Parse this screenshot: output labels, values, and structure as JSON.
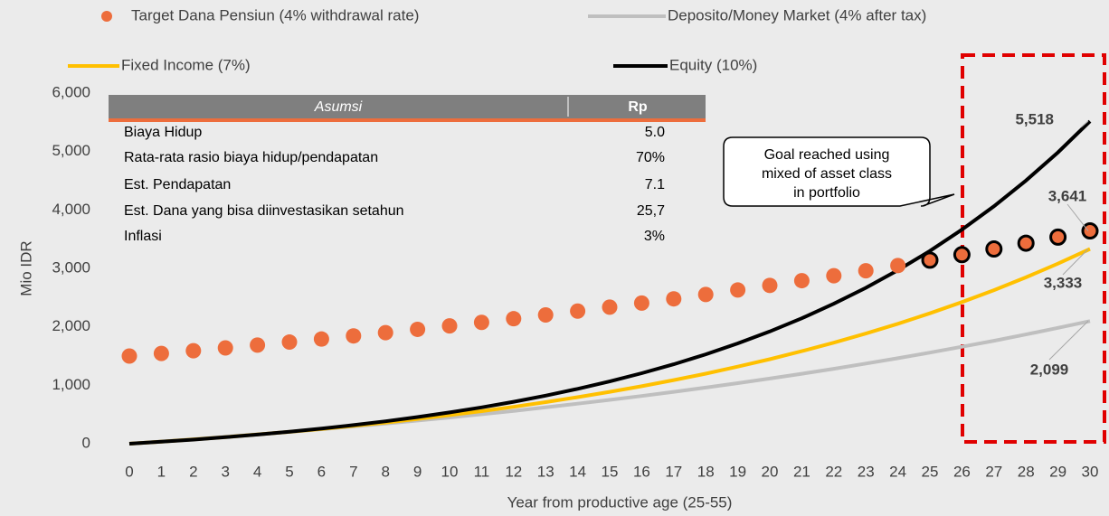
{
  "chart_data": {
    "type": "line",
    "x_label": "Year from productive age (25-55)",
    "y_label": "Mio IDR",
    "x": [
      0,
      1,
      2,
      3,
      4,
      5,
      6,
      7,
      8,
      9,
      10,
      11,
      12,
      13,
      14,
      15,
      16,
      17,
      18,
      19,
      20,
      21,
      22,
      23,
      24,
      25,
      26,
      27,
      28,
      29,
      30
    ],
    "xlim": [
      -0.5,
      30.5
    ],
    "ylim": [
      0,
      6000
    ],
    "yticks": [
      0,
      {
        "value": 1000,
        "label": "1,000"
      },
      {
        "value": 2000,
        "label": "2,000"
      },
      {
        "value": 3000,
        "label": "3,000"
      },
      {
        "value": 4000,
        "label": "4,000"
      },
      {
        "value": 5000,
        "label": "5,000"
      },
      {
        "value": 6000,
        "label": "6,000"
      }
    ],
    "series": [
      {
        "name": "Target Dana Pensiun (4% withdrawal rate)",
        "color": "#ed6d3c",
        "kind": "scatter",
        "outline_from": 25,
        "end_label": "3,641",
        "values": [
          1500,
          1545,
          1591,
          1639,
          1688,
          1739,
          1791,
          1845,
          1900,
          1957,
          2016,
          2076,
          2139,
          2203,
          2269,
          2337,
          2407,
          2479,
          2554,
          2630,
          2709,
          2790,
          2874,
          2960,
          3049,
          3141,
          3235,
          3332,
          3432,
          3535,
          3641
        ]
      },
      {
        "name": "Deposito/Money Market (4% after tax)",
        "color": "#bfbfbf",
        "kind": "line",
        "end_label": "2,099",
        "values": [
          0,
          37,
          76,
          117,
          159,
          203,
          248,
          296,
          345,
          396,
          449,
          504,
          562,
          622,
          685,
          750,
          817,
          887,
          960,
          1036,
          1115,
          1197,
          1282,
          1371,
          1463,
          1559,
          1659,
          1762,
          1870,
          1983,
          2099
        ]
      },
      {
        "name": "Fixed Income (7%)",
        "color": "#ffc000",
        "kind": "line",
        "end_label": "3,333",
        "values": [
          0,
          35,
          73,
          113,
          157,
          203,
          252,
          305,
          362,
          423,
          488,
          557,
          631,
          711,
          796,
          887,
          984,
          1088,
          1199,
          1319,
          1446,
          1583,
          1729,
          1885,
          2052,
          2231,
          2423,
          2628,
          2847,
          3082,
          3333
        ]
      },
      {
        "name": "Equity (10%)",
        "color": "#000000",
        "kind": "line",
        "end_label": "5,518",
        "values": [
          0,
          34,
          70,
          111,
          156,
          205,
          259,
          318,
          384,
          456,
          535,
          622,
          718,
          823,
          939,
          1066,
          1206,
          1360,
          1530,
          1716,
          1921,
          2147,
          2396,
          2668,
          2969,
          3299,
          3663,
          4063,
          4503,
          4986,
          5518
        ]
      }
    ],
    "annotation": [
      "Goal reached using",
      "mixed of asset class",
      "in portfolio"
    ]
  },
  "table": {
    "header": [
      "Asumsi",
      "Rp"
    ],
    "rows": [
      [
        "Biaya Hidup",
        "5.0"
      ],
      [
        "Rata-rata rasio biaya hidup/pendapatan",
        "70%"
      ],
      [
        "Est. Pendapatan",
        "7.1"
      ],
      [
        "Est. Dana yang bisa diinvestasikan setahun",
        "25,7"
      ],
      [
        "Inflasi",
        "3%"
      ]
    ]
  }
}
